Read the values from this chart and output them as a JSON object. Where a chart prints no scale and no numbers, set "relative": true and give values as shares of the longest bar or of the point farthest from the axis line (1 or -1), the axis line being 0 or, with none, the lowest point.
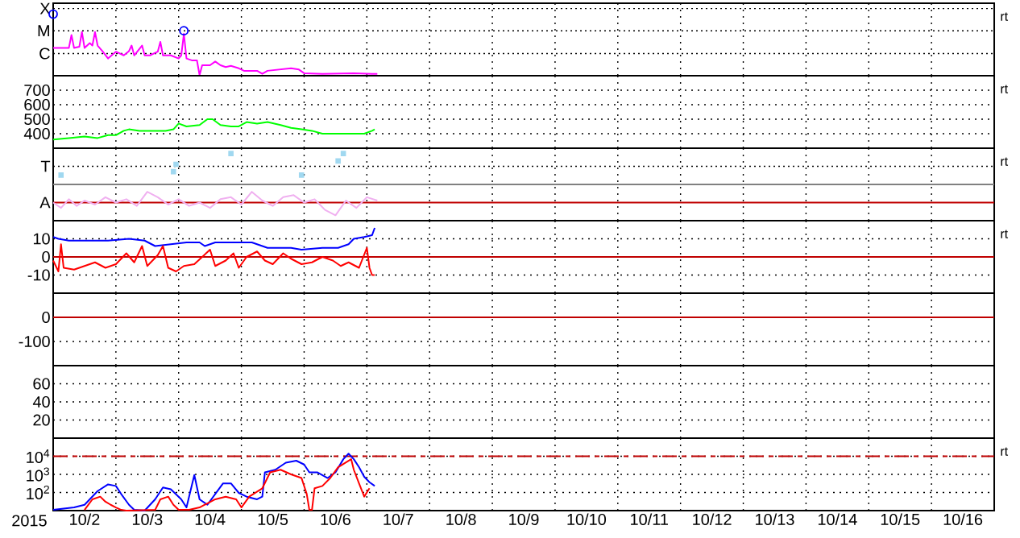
{
  "chart_data": [
    {
      "type": "line",
      "xlim": [
        "2015-10-02T00:00",
        "2015-10-17T00:00"
      ],
      "xticks": [
        {
          "value": "2015-10-03T00:00",
          "label": null
        },
        {
          "value": "2015-10-04T00:00",
          "label": null
        },
        {
          "value": "2015-10-05T00:00",
          "label": null
        },
        {
          "value": "2015-10-06T00:00",
          "label": null
        },
        {
          "value": "2015-10-07T00:00",
          "label": null
        },
        {
          "value": "2015-10-08T00:00",
          "label": null
        },
        {
          "value": "2015-10-09T00:00",
          "label": null
        },
        {
          "value": "2015-10-10T00:00",
          "label": null
        },
        {
          "value": "2015-10-11T00:00",
          "label": null
        },
        {
          "value": "2015-10-12T00:00",
          "label": null
        },
        {
          "value": "2015-10-13T00:00",
          "label": null
        },
        {
          "value": "2015-10-14T00:00",
          "label": null
        },
        {
          "value": "2015-10-15T00:00",
          "label": null
        },
        {
          "value": "2015-10-16T00:00",
          "label": null
        }
      ],
      "relative": true,
      "tick_labels": "y",
      "grid": "x",
      "annotations": [
        "rt"
      ],
      "ref_lines": [
        {
          "axis": "y",
          "value": 1.09,
          "label": "X",
          "color": "#000000",
          "line_style": "dotted"
        },
        {
          "axis": "y",
          "value": 0.73,
          "label": "M",
          "color": "#000000",
          "line_style": "dotted"
        },
        {
          "axis": "y",
          "value": 0.36,
          "label": "C",
          "color": "#000000",
          "line_style": "dotted"
        }
      ],
      "series": [
        {
          "color": "#ff00ff",
          "x": [
            "2015-10-02T00:00",
            "2015-10-02T06:00",
            "2015-10-02T07:00",
            "2015-10-02T08:00",
            "2015-10-02T10:00",
            "2015-10-02T11:00",
            "2015-10-02T12:00",
            "2015-10-02T14:00",
            "2015-10-02T15:00",
            "2015-10-02T16:00",
            "2015-10-02T17:00",
            "2015-10-02T19:00",
            "2015-10-02T21:00",
            "2015-10-03T00:00",
            "2015-10-03T03:00",
            "2015-10-03T05:00",
            "2015-10-03T06:00",
            "2015-10-03T07:00",
            "2015-10-03T10:00",
            "2015-10-03T11:00",
            "2015-10-03T13:00",
            "2015-10-03T16:00",
            "2015-10-03T17:00",
            "2015-10-03T18:00",
            "2015-10-03T21:00",
            "2015-10-04T00:00",
            "2015-10-04T01:00",
            "2015-10-04T02:00",
            "2015-10-04T03:00",
            "2015-10-04T05:00",
            "2015-10-04T07:00",
            "2015-10-04T08:00",
            "2015-10-04T09:00",
            "2015-10-04T12:00",
            "2015-10-04T14:00",
            "2015-10-04T16:00",
            "2015-10-04T18:00",
            "2015-10-04T20:00",
            "2015-10-04T23:00",
            "2015-10-05T01:00",
            "2015-10-05T06:00",
            "2015-10-05T08:00",
            "2015-10-05T10:00",
            "2015-10-05T19:00",
            "2015-10-05T22:00",
            "2015-10-06T00:00",
            "2015-10-06T07:00",
            "2015-10-06T19:00",
            "2015-10-07T02:00",
            "2015-10-07T04:00"
          ],
          "values": [
            0.45,
            0.45,
            0.66,
            0.45,
            0.47,
            0.71,
            0.45,
            0.53,
            0.49,
            0.71,
            0.49,
            0.39,
            0.28,
            0.39,
            0.33,
            0.4,
            0.49,
            0.33,
            0.49,
            0.33,
            0.33,
            0.39,
            0.55,
            0.33,
            0.33,
            0.28,
            0.33,
            0.68,
            0.28,
            0.25,
            0.25,
            0.01,
            0.17,
            0.17,
            0.23,
            0.17,
            0.14,
            0.16,
            0.12,
            0.08,
            0.08,
            0.03,
            0.08,
            0.12,
            0.1,
            0.04,
            0.03,
            0.04,
            0.03,
            0.03
          ]
        },
        {
          "type": "scatter",
          "marker": "circle",
          "color": "#0000ff",
          "x": [
            "2015-10-02T00:00",
            "2015-10-04T02:00"
          ],
          "values": [
            1,
            0.73
          ]
        }
      ]
    },
    {
      "type": "line",
      "xlim": [
        "2015-10-02T00:00",
        "2015-10-17T00:00"
      ],
      "xticks": [
        {
          "value": "2015-10-03T00:00",
          "label": null
        },
        {
          "value": "2015-10-04T00:00",
          "label": null
        },
        {
          "value": "2015-10-05T00:00",
          "label": null
        },
        {
          "value": "2015-10-06T00:00",
          "label": null
        },
        {
          "value": "2015-10-07T00:00",
          "label": null
        },
        {
          "value": "2015-10-08T00:00",
          "label": null
        },
        {
          "value": "2015-10-09T00:00",
          "label": null
        },
        {
          "value": "2015-10-10T00:00",
          "label": null
        },
        {
          "value": "2015-10-11T00:00",
          "label": null
        },
        {
          "value": "2015-10-12T00:00",
          "label": null
        },
        {
          "value": "2015-10-13T00:00",
          "label": null
        },
        {
          "value": "2015-10-14T00:00",
          "label": null
        },
        {
          "value": "2015-10-15T00:00",
          "label": null
        },
        {
          "value": "2015-10-16T00:00",
          "label": null
        }
      ],
      "ylim": [
        300,
        800
      ],
      "yticks": [
        400,
        500,
        600,
        700
      ],
      "tick_labels": "y",
      "grid": true,
      "annotations": [
        "rt"
      ],
      "series": [
        {
          "color": "#00ff00",
          "x": [
            "2015-10-02T00:00",
            "2015-10-02T06:00",
            "2015-10-02T12:00",
            "2015-10-02T17:00",
            "2015-10-02T21:00",
            "2015-10-03T00:00",
            "2015-10-03T03:00",
            "2015-10-03T05:00",
            "2015-10-03T09:00",
            "2015-10-03T15:00",
            "2015-10-03T19:00",
            "2015-10-03T22:00",
            "2015-10-04T00:00",
            "2015-10-04T03:00",
            "2015-10-04T08:00",
            "2015-10-04T11:00",
            "2015-10-04T13:00",
            "2015-10-04T16:00",
            "2015-10-04T20:00",
            "2015-10-04T23:00",
            "2015-10-05T02:00",
            "2015-10-05T06:00",
            "2015-10-05T10:00",
            "2015-10-05T15:00",
            "2015-10-05T19:00",
            "2015-10-05T23:00",
            "2015-10-06T03:00",
            "2015-10-06T07:00",
            "2015-10-06T11:00",
            "2015-10-06T15:00",
            "2015-10-06T19:00",
            "2015-10-06T23:00",
            "2015-10-07T02:00",
            "2015-10-07T03:00"
          ],
          "values": [
            360,
            370,
            380,
            370,
            390,
            390,
            420,
            430,
            420,
            420,
            420,
            430,
            470,
            450,
            460,
            500,
            500,
            460,
            450,
            450,
            480,
            470,
            480,
            460,
            440,
            430,
            420,
            400,
            400,
            400,
            400,
            400,
            420,
            430
          ]
        }
      ]
    },
    {
      "type": "line",
      "xlim": [
        "2015-10-02T00:00",
        "2015-10-17T00:00"
      ],
      "xticks": [
        {
          "value": "2015-10-03T00:00",
          "label": null
        },
        {
          "value": "2015-10-04T00:00",
          "label": null
        },
        {
          "value": "2015-10-05T00:00",
          "label": null
        },
        {
          "value": "2015-10-06T00:00",
          "label": null
        },
        {
          "value": "2015-10-07T00:00",
          "label": null
        },
        {
          "value": "2015-10-08T00:00",
          "label": null
        },
        {
          "value": "2015-10-09T00:00",
          "label": null
        },
        {
          "value": "2015-10-10T00:00",
          "label": null
        },
        {
          "value": "2015-10-11T00:00",
          "label": null
        },
        {
          "value": "2015-10-12T00:00",
          "label": null
        },
        {
          "value": "2015-10-13T00:00",
          "label": null
        },
        {
          "value": "2015-10-14T00:00",
          "label": null
        },
        {
          "value": "2015-10-15T00:00",
          "label": null
        },
        {
          "value": "2015-10-16T00:00",
          "label": null
        }
      ],
      "relative": true,
      "tick_labels": "y",
      "grid": true,
      "annotations": [
        "rt"
      ],
      "ref_lines": [
        {
          "axis": "y",
          "value": 0.81,
          "label": "T",
          "color": "#000000",
          "line_style": "dotted"
        },
        {
          "axis": "y",
          "value": 0.54,
          "color": "#808080"
        },
        {
          "axis": "y",
          "value": 0.27,
          "label": "A",
          "color": "#c00000"
        }
      ],
      "series": [
        {
          "color": "#f0b0f0",
          "x": [
            "2015-10-02T00:00",
            "2015-10-02T03:00",
            "2015-10-02T06:00",
            "2015-10-02T09:00",
            "2015-10-02T12:00",
            "2015-10-02T16:00",
            "2015-10-02T20:00",
            "2015-10-03T00:00",
            "2015-10-03T04:00",
            "2015-10-03T08:00",
            "2015-10-03T12:00",
            "2015-10-03T16:00",
            "2015-10-03T20:00",
            "2015-10-04T00:00",
            "2015-10-04T04:00",
            "2015-10-04T08:00",
            "2015-10-04T12:00",
            "2015-10-04T16:00",
            "2015-10-04T20:00",
            "2015-10-05T00:00",
            "2015-10-05T04:00",
            "2015-10-05T08:00",
            "2015-10-05T12:00",
            "2015-10-05T16:00",
            "2015-10-05T20:00",
            "2015-10-06T00:00",
            "2015-10-06T04:00",
            "2015-10-06T08:00",
            "2015-10-06T12:00",
            "2015-10-06T16:00",
            "2015-10-06T20:00",
            "2015-10-07T00:00",
            "2015-10-07T04:00"
          ],
          "values": [
            0.27,
            0.19,
            0.32,
            0.22,
            0.3,
            0.24,
            0.35,
            0.27,
            0.32,
            0.22,
            0.43,
            0.35,
            0.24,
            0.32,
            0.22,
            0.27,
            0.19,
            0.32,
            0.35,
            0.24,
            0.43,
            0.3,
            0.22,
            0.35,
            0.38,
            0.27,
            0.32,
            0.16,
            0.08,
            0.3,
            0.19,
            0.35,
            0.3
          ]
        },
        {
          "type": "scatter",
          "marker": "square",
          "color": "#a0d8f0",
          "x": [
            "2015-10-02T03:00",
            "2015-10-03T22:00",
            "2015-10-03T23:00",
            "2015-10-04T20:00",
            "2015-10-05T23:00",
            "2015-10-06T13:00",
            "2015-10-06T15:00"
          ],
          "values": [
            0.68,
            0.73,
            0.84,
            1,
            0.68,
            0.89,
            1
          ]
        }
      ]
    },
    {
      "type": "line",
      "xlim": [
        "2015-10-02T00:00",
        "2015-10-17T00:00"
      ],
      "xticks": [
        {
          "value": "2015-10-03T00:00",
          "label": null
        },
        {
          "value": "2015-10-04T00:00",
          "label": null
        },
        {
          "value": "2015-10-05T00:00",
          "label": null
        },
        {
          "value": "2015-10-06T00:00",
          "label": null
        },
        {
          "value": "2015-10-07T00:00",
          "label": null
        },
        {
          "value": "2015-10-08T00:00",
          "label": null
        },
        {
          "value": "2015-10-09T00:00",
          "label": null
        },
        {
          "value": "2015-10-10T00:00",
          "label": null
        },
        {
          "value": "2015-10-11T00:00",
          "label": null
        },
        {
          "value": "2015-10-12T00:00",
          "label": null
        },
        {
          "value": "2015-10-13T00:00",
          "label": null
        },
        {
          "value": "2015-10-14T00:00",
          "label": null
        },
        {
          "value": "2015-10-15T00:00",
          "label": null
        },
        {
          "value": "2015-10-16T00:00",
          "label": null
        }
      ],
      "ylim": [
        -20,
        20
      ],
      "yticks": [
        10,
        0,
        -10
      ],
      "tick_labels": "y",
      "grid": true,
      "annotations": [
        "rt"
      ],
      "ref_lines": [
        {
          "axis": "y",
          "value": 0,
          "color": "#c00000"
        }
      ],
      "series": [
        {
          "color": "#0000ff",
          "x": [
            "2015-10-02T00:00",
            "2015-10-02T02:00",
            "2015-10-02T06:00",
            "2015-10-02T21:00",
            "2015-10-03T05:00",
            "2015-10-03T11:00",
            "2015-10-03T15:00",
            "2015-10-03T21:00",
            "2015-10-04T03:00",
            "2015-10-04T08:00",
            "2015-10-04T10:00",
            "2015-10-04T14:00",
            "2015-10-04T22:00",
            "2015-10-05T04:00",
            "2015-10-05T08:00",
            "2015-10-05T10:00",
            "2015-10-05T19:00",
            "2015-10-05T23:00",
            "2015-10-06T07:00",
            "2015-10-06T13:00",
            "2015-10-06T17:00",
            "2015-10-06T19:00",
            "2015-10-06T23:00",
            "2015-10-07T02:00",
            "2015-10-07T03:00"
          ],
          "values": [
            11,
            10,
            9,
            9,
            10,
            9,
            6,
            7,
            8,
            8,
            6,
            8,
            8,
            8,
            6,
            5,
            5,
            4,
            5,
            5,
            7,
            10,
            11,
            12,
            16
          ]
        },
        {
          "color": "#ff0000",
          "x": [
            "2015-10-02T00:00",
            "2015-10-02T02:00",
            "2015-10-02T03:00",
            "2015-10-02T04:00",
            "2015-10-02T08:00",
            "2015-10-02T12:00",
            "2015-10-02T16:00",
            "2015-10-02T20:00",
            "2015-10-03T00:00",
            "2015-10-03T04:00",
            "2015-10-03T07:00",
            "2015-10-03T10:00",
            "2015-10-03T12:00",
            "2015-10-03T16:00",
            "2015-10-03T18:00",
            "2015-10-03T20:00",
            "2015-10-03T23:00",
            "2015-10-04T02:00",
            "2015-10-04T06:00",
            "2015-10-04T09:00",
            "2015-10-04T12:00",
            "2015-10-04T14:00",
            "2015-10-04T18:00",
            "2015-10-04T21:00",
            "2015-10-04T23:00",
            "2015-10-05T02:00",
            "2015-10-05T06:00",
            "2015-10-05T09:00",
            "2015-10-05T12:00",
            "2015-10-05T16:00",
            "2015-10-05T19:00",
            "2015-10-05T23:00",
            "2015-10-06T03:00",
            "2015-10-06T07:00",
            "2015-10-06T11:00",
            "2015-10-06T14:00",
            "2015-10-06T17:00",
            "2015-10-06T21:00",
            "2015-10-07T00:00",
            "2015-10-07T01:00",
            "2015-10-07T02:00",
            "2015-10-07T03:00"
          ],
          "values": [
            -2,
            -8,
            7,
            -6,
            -7,
            -5,
            -3,
            -6,
            -4,
            2,
            -3,
            6,
            -5,
            1,
            6,
            -6,
            -8,
            -5,
            -4,
            0,
            4,
            -5,
            -2,
            2,
            -6,
            0,
            3,
            -2,
            -4,
            2,
            -1,
            -4,
            -3,
            0,
            -2,
            -5,
            -3,
            -6,
            5,
            -6,
            -10,
            -10
          ]
        }
      ]
    },
    {
      "type": "line",
      "xlim": [
        "2015-10-02T00:00",
        "2015-10-17T00:00"
      ],
      "xticks": [
        {
          "value": "2015-10-03T00:00",
          "label": null
        },
        {
          "value": "2015-10-04T00:00",
          "label": null
        },
        {
          "value": "2015-10-05T00:00",
          "label": null
        },
        {
          "value": "2015-10-06T00:00",
          "label": null
        },
        {
          "value": "2015-10-07T00:00",
          "label": null
        },
        {
          "value": "2015-10-08T00:00",
          "label": null
        },
        {
          "value": "2015-10-09T00:00",
          "label": null
        },
        {
          "value": "2015-10-10T00:00",
          "label": null
        },
        {
          "value": "2015-10-11T00:00",
          "label": null
        },
        {
          "value": "2015-10-12T00:00",
          "label": null
        },
        {
          "value": "2015-10-13T00:00",
          "label": null
        },
        {
          "value": "2015-10-14T00:00",
          "label": null
        },
        {
          "value": "2015-10-15T00:00",
          "label": null
        },
        {
          "value": "2015-10-16T00:00",
          "label": null
        }
      ],
      "ylim": [
        -200,
        100
      ],
      "yticks": [
        0,
        -100
      ],
      "tick_labels": "y",
      "grid": true,
      "ref_lines": [
        {
          "axis": "y",
          "value": 0,
          "color": "#c00000"
        }
      ]
    },
    {
      "type": "line",
      "xlim": [
        "2015-10-02T00:00",
        "2015-10-17T00:00"
      ],
      "xticks": [
        {
          "value": "2015-10-03T00:00",
          "label": null
        },
        {
          "value": "2015-10-04T00:00",
          "label": null
        },
        {
          "value": "2015-10-05T00:00",
          "label": null
        },
        {
          "value": "2015-10-06T00:00",
          "label": null
        },
        {
          "value": "2015-10-07T00:00",
          "label": null
        },
        {
          "value": "2015-10-08T00:00",
          "label": null
        },
        {
          "value": "2015-10-09T00:00",
          "label": null
        },
        {
          "value": "2015-10-10T00:00",
          "label": null
        },
        {
          "value": "2015-10-11T00:00",
          "label": null
        },
        {
          "value": "2015-10-12T00:00",
          "label": null
        },
        {
          "value": "2015-10-13T00:00",
          "label": null
        },
        {
          "value": "2015-10-14T00:00",
          "label": null
        },
        {
          "value": "2015-10-15T00:00",
          "label": null
        },
        {
          "value": "2015-10-16T00:00",
          "label": null
        }
      ],
      "ylim": [
        0,
        80
      ],
      "yticks": [
        60,
        40,
        20
      ],
      "tick_labels": "y",
      "grid": true
    },
    {
      "type": "line",
      "xlim": [
        "2015-10-02T00:00",
        "2015-10-17T00:00"
      ],
      "xlabel": "2015",
      "xticks": [
        {
          "value": "2015-10-03T00:00",
          "label": null
        },
        {
          "value": "2015-10-04T00:00",
          "label": null
        },
        {
          "value": "2015-10-05T00:00",
          "label": null
        },
        {
          "value": "2015-10-06T00:00",
          "label": null
        },
        {
          "value": "2015-10-07T00:00",
          "label": null
        },
        {
          "value": "2015-10-08T00:00",
          "label": null
        },
        {
          "value": "2015-10-09T00:00",
          "label": null
        },
        {
          "value": "2015-10-10T00:00",
          "label": null
        },
        {
          "value": "2015-10-11T00:00",
          "label": null
        },
        {
          "value": "2015-10-12T00:00",
          "label": null
        },
        {
          "value": "2015-10-13T00:00",
          "label": null
        },
        {
          "value": "2015-10-14T00:00",
          "label": null
        },
        {
          "value": "2015-10-15T00:00",
          "label": null
        },
        {
          "value": "2015-10-16T00:00",
          "label": null
        },
        {
          "value": "2015-10-02T12:00",
          "label": "10/2"
        },
        {
          "value": "2015-10-03T12:00",
          "label": "10/3"
        },
        {
          "value": "2015-10-04T12:00",
          "label": "10/4"
        },
        {
          "value": "2015-10-05T12:00",
          "label": "10/5"
        },
        {
          "value": "2015-10-06T12:00",
          "label": "10/6"
        },
        {
          "value": "2015-10-07T12:00",
          "label": "10/7"
        },
        {
          "value": "2015-10-08T12:00",
          "label": "10/8"
        },
        {
          "value": "2015-10-09T12:00",
          "label": "10/9"
        },
        {
          "value": "2015-10-10T12:00",
          "label": "10/10"
        },
        {
          "value": "2015-10-11T12:00",
          "label": "10/11"
        },
        {
          "value": "2015-10-12T12:00",
          "label": "10/12"
        },
        {
          "value": "2015-10-13T12:00",
          "label": "10/13"
        },
        {
          "value": "2015-10-14T12:00",
          "label": "10/14"
        },
        {
          "value": "2015-10-15T12:00",
          "label": "10/15"
        },
        {
          "value": "2015-10-16T12:00",
          "label": "10/16"
        }
      ],
      "ylim": [
        10,
        100000
      ],
      "log": true,
      "yticks": [
        {
          "value": 10000,
          "label": "10$^{4}$"
        },
        {
          "value": 1000,
          "label": "10$^{3}$"
        },
        {
          "value": 100,
          "label": "10$^{2}$"
        }
      ],
      "grid": true,
      "annotations": [
        "rt"
      ],
      "ref_lines": [
        {
          "axis": "y",
          "value": 10000,
          "color": "#c00000",
          "line_style": "dashed"
        }
      ],
      "series": [
        {
          "color": "#0000ff",
          "x": [
            "2015-10-02T00:00",
            "2015-10-02T08:00",
            "2015-10-02T12:00",
            "2015-10-02T17:00",
            "2015-10-02T21:00",
            "2015-10-03T00:00",
            "2015-10-03T02:00",
            "2015-10-03T05:00",
            "2015-10-03T07:00",
            "2015-10-03T11:00",
            "2015-10-03T15:00",
            "2015-10-03T18:00",
            "2015-10-03T21:00",
            "2015-10-04T01:00",
            "2015-10-04T03:00",
            "2015-10-04T06:00",
            "2015-10-04T08:00",
            "2015-10-04T11:00",
            "2015-10-04T14:00",
            "2015-10-04T17:00",
            "2015-10-04T20:00",
            "2015-10-04T23:00",
            "2015-10-05T02:00",
            "2015-10-05T06:00",
            "2015-10-05T08:00",
            "2015-10-05T09:00",
            "2015-10-05T13:00",
            "2015-10-05T17:00",
            "2015-10-05T21:00",
            "2015-10-06T00:00",
            "2015-10-06T02:00",
            "2015-10-06T05:00",
            "2015-10-06T09:00",
            "2015-10-06T12:00",
            "2015-10-06T15:00",
            "2015-10-06T17:00",
            "2015-10-06T19:00",
            "2015-10-06T21:00",
            "2015-10-06T23:00",
            "2015-10-07T01:00",
            "2015-10-07T03:00"
          ],
          "values": [
            11,
            15,
            21,
            120,
            280,
            230,
            83,
            21,
            11,
            10,
            42,
            190,
            150,
            42,
            15,
            920,
            42,
            21,
            83,
            320,
            320,
            95,
            59,
            42,
            59,
            1300,
            1800,
            4400,
            5700,
            3500,
            1300,
            1300,
            630,
            1300,
            6900,
            14000,
            6900,
            2500,
            740,
            370,
            230
          ]
        },
        {
          "color": "#ff0000",
          "x": [
            "2015-10-02T12:00",
            "2015-10-02T15:00",
            "2015-10-02T18:00",
            "2015-10-02T20:00",
            "2015-10-02T22:00",
            "2015-10-03T00:00",
            "2015-10-03T02:00",
            "2015-10-03T04:00",
            "2015-10-03T15:00",
            "2015-10-03T17:00",
            "2015-10-03T20:00",
            "2015-10-03T22:00",
            "2015-10-04T00:00",
            "2015-10-04T04:00",
            "2015-10-04T08:00",
            "2015-10-04T14:00",
            "2015-10-04T18:00",
            "2015-10-04T22:00",
            "2015-10-05T00:00",
            "2015-10-05T03:00",
            "2015-10-05T08:00",
            "2015-10-05T11:00",
            "2015-10-05T15:00",
            "2015-10-05T19:00",
            "2015-10-05T23:00",
            "2015-10-06T01:00",
            "2015-10-06T02:00",
            "2015-10-06T03:00",
            "2015-10-06T04:00",
            "2015-10-06T07:00",
            "2015-10-06T10:00",
            "2015-10-06T13:00",
            "2015-10-06T16:00",
            "2015-10-06T18:00",
            "2015-10-06T19:00",
            "2015-10-06T21:00",
            "2015-10-06T23:00",
            "2015-10-07T01:00"
          ],
          "values": [
            11,
            42,
            59,
            31,
            21,
            15,
            11,
            10,
            11,
            42,
            59,
            21,
            11,
            11,
            15,
            42,
            59,
            42,
            15,
            59,
            170,
            1300,
            1800,
            1000,
            630,
            83,
            11,
            11,
            170,
            230,
            630,
            2500,
            4600,
            6900,
            1800,
            320,
            59,
            170
          ]
        }
      ]
    }
  ]
}
